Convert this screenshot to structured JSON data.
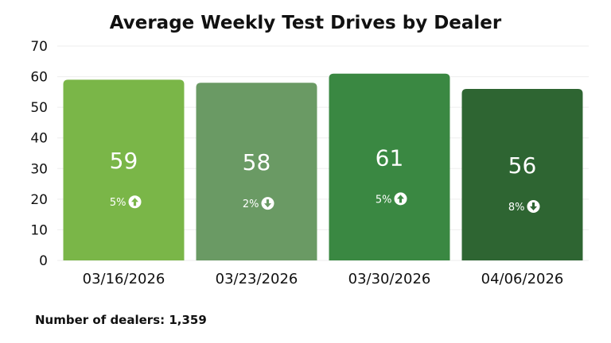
{
  "chart_data": {
    "type": "bar",
    "title": "Average Weekly Test Drives by Dealer",
    "xlabel": "",
    "ylabel": "",
    "ylim": [
      0,
      70
    ],
    "yticks": [
      0,
      10,
      20,
      30,
      40,
      50,
      60,
      70
    ],
    "categories": [
      "03/16/2026",
      "03/23/2026",
      "03/30/2026",
      "04/06/2026"
    ],
    "values": [
      59,
      58,
      61,
      56
    ],
    "changes": [
      {
        "label": "5%",
        "direction": "up"
      },
      {
        "label": "2%",
        "direction": "down"
      },
      {
        "label": "5%",
        "direction": "up"
      },
      {
        "label": "8%",
        "direction": "down"
      }
    ],
    "colors": [
      "#7ab648",
      "#6a9a64",
      "#3a8842",
      "#2e6532"
    ],
    "footnote": "Number of dealers: 1,359"
  }
}
